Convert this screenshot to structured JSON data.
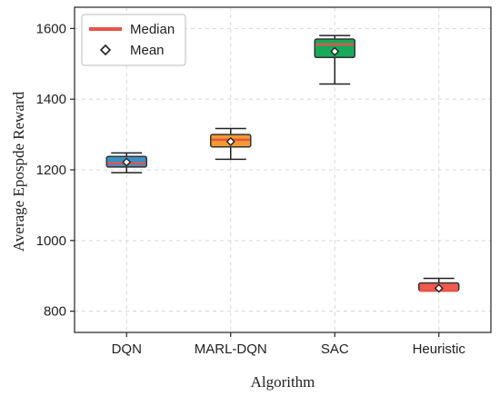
{
  "chart_data": {
    "type": "box",
    "title": "",
    "xlabel": "Algorithm",
    "ylabel": "Average Epospde Reward",
    "ylim": [
      740,
      1660
    ],
    "yticks": [
      800,
      1000,
      1200,
      1400,
      1600
    ],
    "grid": true,
    "legend": {
      "placement": "top-left",
      "entries": [
        {
          "label": "Median",
          "marker": "line",
          "color": "#e8534a"
        },
        {
          "label": "Mean",
          "marker": "diamond",
          "color": "#222222"
        }
      ]
    },
    "categories": [
      "DQN",
      "MARL-DQN",
      "SAC",
      "Heuristic"
    ],
    "boxes": [
      {
        "name": "DQN",
        "color": "#3b8fc4",
        "whisker_low": 1192,
        "q1": 1208,
        "median": 1218,
        "q3": 1238,
        "whisker_high": 1248,
        "mean": 1222
      },
      {
        "name": "MARL-DQN",
        "color": "#f39a33",
        "whisker_low": 1230,
        "q1": 1265,
        "median": 1285,
        "q3": 1300,
        "whisker_high": 1317,
        "mean": 1280
      },
      {
        "name": "SAC",
        "color": "#1aa85b",
        "whisker_low": 1443,
        "q1": 1518,
        "median": 1555,
        "q3": 1570,
        "whisker_high": 1580,
        "mean": 1535
      },
      {
        "name": "Heuristic",
        "color": "#f0594e",
        "whisker_low": 858,
        "q1": 858,
        "median": 858,
        "q3": 880,
        "whisker_high": 893,
        "mean": 865
      }
    ]
  }
}
